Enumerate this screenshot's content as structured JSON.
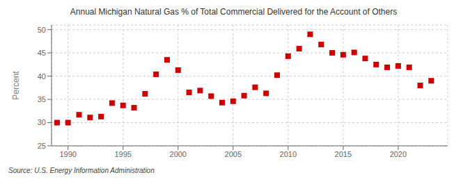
{
  "chart_data": {
    "type": "scatter",
    "title": "Annual Michigan Natural Gas % of Total Commercial Delivered for the Account of Others",
    "ylabel": "Percent",
    "source": "Source: U.S. Energy Information Administration",
    "x": [
      1989,
      1990,
      1991,
      1992,
      1993,
      1994,
      1995,
      1996,
      1997,
      1998,
      1999,
      2000,
      2001,
      2002,
      2003,
      2004,
      2005,
      2006,
      2007,
      2008,
      2009,
      2010,
      2011,
      2012,
      2013,
      2014,
      2015,
      2016,
      2017,
      2018,
      2019,
      2020,
      2021,
      2022,
      2023
    ],
    "values": [
      30.0,
      30.0,
      31.7,
      31.1,
      31.3,
      34.2,
      33.7,
      33.2,
      36.2,
      40.4,
      43.5,
      41.3,
      36.5,
      36.9,
      35.7,
      34.3,
      34.6,
      35.8,
      37.6,
      36.3,
      40.2,
      44.3,
      45.9,
      49.0,
      46.8,
      45.0,
      44.6,
      45.1,
      43.8,
      42.5,
      41.9,
      42.2,
      41.9,
      38.0,
      39.0
    ],
    "color": "#cc0000",
    "marker": "square",
    "xlim": [
      1988.5,
      2024.5
    ],
    "ylim": [
      25,
      51
    ],
    "xticks": [
      1990,
      1995,
      2000,
      2005,
      2010,
      2015,
      2020
    ],
    "yticks": [
      25,
      30,
      35,
      40,
      45,
      50
    ],
    "grid": true
  }
}
